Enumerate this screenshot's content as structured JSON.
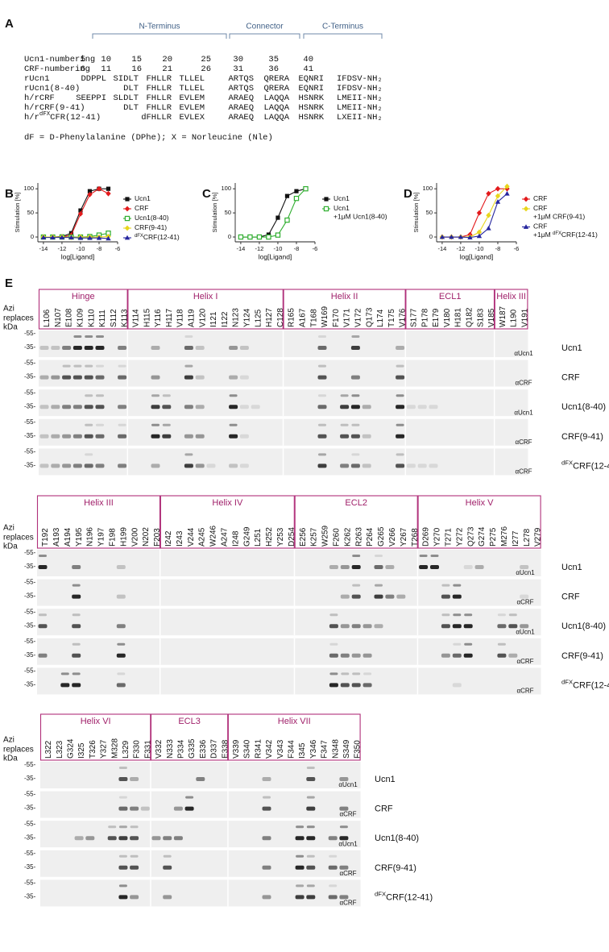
{
  "panel_a": {
    "label": "A",
    "regions": [
      "N-Terminus",
      "Connector",
      "C-Terminus"
    ],
    "numbering": [
      {
        "name": "Ucn1-numbering",
        "cells": [
          "5",
          "10",
          "15",
          "20",
          "25",
          "30",
          "35",
          "40"
        ]
      },
      {
        "name": "CRF-numbering",
        "cells": [
          "6",
          "11",
          "16",
          "21",
          "26",
          "31",
          "36",
          "41"
        ]
      }
    ],
    "sequences": [
      {
        "name": [
          {
            "text": "rUcn1"
          }
        ],
        "cells": [
          "DDPPL",
          "SIDLT",
          "FHLLR",
          "TLLEL",
          "ARTQS",
          "QRERA",
          "EQNRI",
          "IFDSV-NH₂"
        ]
      },
      {
        "name": [
          {
            "text": "rUcn1(8-40)"
          }
        ],
        "cells": [
          null,
          "DLT",
          "FHLLR",
          "TLLEL",
          "ARTQS",
          "QRERA",
          "EQNRI",
          "IFDSV-NH₂"
        ]
      },
      {
        "name": [
          {
            "text": "h/rCRF"
          }
        ],
        "cells": [
          "SEEPPI",
          "SLDLT",
          "FHLLR",
          "EVLEM",
          "ARAEQ",
          "LAQQA",
          "HSNRK",
          "LMEII-NH₂"
        ]
      },
      {
        "name": [
          {
            "text": "h/rCRF(9-41)"
          }
        ],
        "cells": [
          null,
          "DLT",
          "FHLLR",
          "EVLEM",
          "ARAEQ",
          "LAQQA",
          "HSNRK",
          "LMEII-NH₂"
        ]
      },
      {
        "name": [
          {
            "text": "h/r"
          },
          {
            "sup": "dFX"
          },
          {
            "text": "CFR(12-41)"
          }
        ],
        "cells": [
          null,
          null,
          "dFHLLR",
          "EVLEX",
          "ARAEQ",
          "LAQQA",
          "HSNRK",
          "LXEII-NH₂"
        ]
      }
    ],
    "footnote": "dF = D-Phenylalanine (DPhe); X = Norleucine (Nle)"
  },
  "charts": [
    {
      "label": "B",
      "type": "line",
      "ylabel": "Stimulation [%]",
      "xlabel": "log[Ligand]",
      "x": [
        -14,
        -13,
        -12,
        -11,
        -10,
        -9,
        -8,
        -7
      ],
      "xlim": [
        -14.6,
        -6
      ],
      "xticks": [
        -14,
        -12,
        -10,
        -8,
        -6
      ],
      "ylim": [
        -10,
        112
      ],
      "yticks": [
        0,
        50,
        100
      ],
      "series": [
        {
          "legend": [
            [
              {
                "text": "Ucn1"
              }
            ]
          ],
          "color": "#111111",
          "marker": "square",
          "values": [
            0,
            0,
            1,
            8,
            55,
            95,
            100,
            100
          ]
        },
        {
          "legend": [
            [
              {
                "text": "CRF"
              }
            ]
          ],
          "color": "#e31a1c",
          "marker": "diamond",
          "values": [
            0,
            0,
            0,
            4,
            48,
            88,
            100,
            90
          ]
        },
        {
          "legend": [
            [
              {
                "text": "Ucn1(8-40)"
              }
            ]
          ],
          "color": "#2fae2f",
          "marker": "open-square",
          "values": [
            0,
            0,
            0,
            0,
            0,
            1,
            4,
            8
          ]
        },
        {
          "legend": [
            [
              {
                "text": "CRF(9-41)"
              }
            ]
          ],
          "color": "#e8d61c",
          "marker": "diamond",
          "values": [
            0,
            0,
            0,
            -1,
            0,
            0,
            0,
            1
          ]
        },
        {
          "legend": [
            [
              {
                "sup": "dFX"
              },
              {
                "text": "CRF(12-41)"
              }
            ]
          ],
          "color": "#26269e",
          "marker": "triangle",
          "values": [
            -1,
            -1,
            -1,
            -1,
            -2,
            -2,
            -2,
            -3
          ]
        }
      ]
    },
    {
      "label": "C",
      "type": "line",
      "ylabel": "Stimulation [%]",
      "xlabel": "log[Ligand]",
      "x": [
        -14,
        -13,
        -12,
        -11,
        -10,
        -9,
        -8,
        -7
      ],
      "xlim": [
        -14.6,
        -6
      ],
      "xticks": [
        -14,
        -12,
        -10,
        -8,
        -6
      ],
      "ylim": [
        -10,
        112
      ],
      "yticks": [
        0,
        50,
        100
      ],
      "series": [
        {
          "legend": [
            [
              {
                "text": "Ucn1"
              }
            ]
          ],
          "color": "#111111",
          "marker": "square",
          "values": [
            0,
            0,
            0,
            5,
            40,
            85,
            95,
            100
          ]
        },
        {
          "legend": [
            [
              {
                "text": "Ucn1"
              }
            ],
            [
              {
                "text": "+1μM Ucn1(8-40)"
              }
            ]
          ],
          "color": "#2fae2f",
          "marker": "open-square",
          "values": [
            0,
            0,
            0,
            0,
            4,
            35,
            80,
            100
          ]
        }
      ]
    },
    {
      "label": "D",
      "type": "line",
      "ylabel": "Stimulation [%]",
      "xlabel": "log[Ligand]",
      "x": [
        -14,
        -13,
        -12,
        -11,
        -10,
        -9,
        -8,
        -7
      ],
      "xlim": [
        -14.6,
        -6
      ],
      "xticks": [
        -14,
        -12,
        -10,
        -8,
        -6
      ],
      "ylim": [
        -10,
        112
      ],
      "yticks": [
        0,
        50,
        100
      ],
      "series": [
        {
          "legend": [
            [
              {
                "text": "CRF"
              }
            ]
          ],
          "color": "#e31a1c",
          "marker": "diamond",
          "values": [
            0,
            0,
            0,
            5,
            50,
            90,
            100,
            100
          ]
        },
        {
          "legend": [
            [
              {
                "text": "CRF"
              }
            ],
            [
              {
                "text": "+1μM CRF(9-41)"
              }
            ]
          ],
          "color": "#e8d61c",
          "marker": "diamond",
          "values": [
            0,
            0,
            0,
            0,
            10,
            45,
            85,
            105
          ]
        },
        {
          "legend": [
            [
              {
                "text": "CRF"
              }
            ],
            [
              {
                "text": "+1μM "
              },
              {
                "sup": "dFX"
              },
              {
                "text": "CRF(12-41)"
              }
            ]
          ],
          "color": "#26269e",
          "marker": "triangle",
          "values": [
            0,
            0,
            0,
            -1,
            2,
            18,
            73,
            90
          ]
        }
      ]
    }
  ],
  "panel_e": {
    "label": "E",
    "azi": "Azi",
    "replaces": "replaces",
    "kda": "kDa",
    "markers": [
      "-55-",
      "-35-"
    ],
    "rows": [
      {
        "ligand": [
          {
            "text": "Ucn1"
          }
        ],
        "antibody": "αUcn1"
      },
      {
        "ligand": [
          {
            "text": "CRF"
          }
        ],
        "antibody": "αCRF"
      },
      {
        "ligand": [
          {
            "text": "Ucn1(8-40)"
          }
        ],
        "antibody": "αUcn1"
      },
      {
        "ligand": [
          {
            "text": "CRF(9-41)"
          }
        ],
        "antibody": "αCRF"
      },
      {
        "ligand": [
          {
            "sup": "dFX"
          },
          {
            "text": "CRF(12-41)"
          }
        ],
        "antibody": "αCRF"
      }
    ],
    "blocks": [
      {
        "regions": [
          {
            "name": "Hinge",
            "residues": [
              "L106",
              "N107",
              "E108",
              "K109",
              "K110",
              "K111",
              "S112",
              "K113"
            ]
          },
          {
            "name": "Helix I",
            "residues": [
              "V114",
              "H115",
              "Y116",
              "H117",
              "V118",
              "A119",
              "V120",
              "I121",
              "I122",
              "N123",
              "Y124",
              "L125",
              "H127",
              "C128"
            ]
          },
          {
            "name": "Helix II",
            "residues": [
              "R165",
              "A167",
              "T168",
              "W169",
              "F170",
              "V171",
              "V172",
              "Q173",
              "L174",
              "T175",
              "V176"
            ]
          },
          {
            "name": "ECL1",
            "residues": [
              "S177",
              "P178",
              "E179",
              "V180",
              "H181",
              "Q182",
              "S183",
              "V185"
            ]
          },
          {
            "name": "Helix III",
            "residues": [
              "W187",
              "L190",
              "V191"
            ]
          }
        ]
      },
      {
        "regions": [
          {
            "name": "Helix III",
            "residues": [
              "T192",
              "A193",
              "A194",
              "Y195",
              "N196",
              "Y197",
              "F198",
              "H199",
              "V200",
              "N202",
              "F203"
            ]
          },
          {
            "name": "Helix IV",
            "residues": [
              "I242",
              "I243",
              "V244",
              "A245",
              "W246",
              "A247",
              "I248",
              "G249",
              "L251",
              "H252",
              "Y253",
              "D254"
            ]
          },
          {
            "name": "ECL2",
            "residues": [
              "E256",
              "K257",
              "W259",
              "F260",
              "K262",
              "R263",
              "P264",
              "G265",
              "V266",
              "Y267",
              "T268"
            ]
          },
          {
            "name": "Helix V",
            "residues": [
              "D269",
              "Y270",
              "T271",
              "Y272",
              "Q273",
              "G274",
              "P275",
              "M276",
              "I277",
              "L278",
              "V279"
            ]
          }
        ]
      },
      {
        "regions": [
          {
            "name": "Helix VI",
            "residues": [
              "L322",
              "L323",
              "G324",
              "I325",
              "T326",
              "Y327",
              "M328",
              "L329",
              "F330",
              "F331"
            ]
          },
          {
            "name": "ECL3",
            "residues": [
              "V332",
              "N333",
              "P334",
              "G335",
              "E336",
              "D337",
              "E338"
            ]
          },
          {
            "name": "Helix VII",
            "residues": [
              "V339",
              "S340",
              "R341",
              "V342",
              "V343",
              "F344",
              "I345",
              "Y346",
              "F347",
              "N348",
              "S349",
              "F350"
            ]
          }
        ]
      }
    ]
  }
}
